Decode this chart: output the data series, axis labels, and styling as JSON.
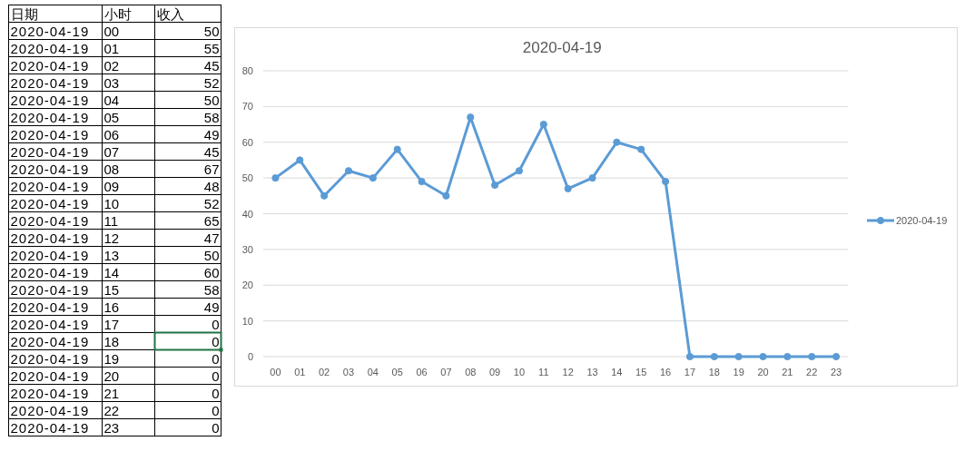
{
  "chart_data": {
    "type": "line",
    "title": "2020-04-19",
    "categories": [
      "00",
      "01",
      "02",
      "03",
      "04",
      "05",
      "06",
      "07",
      "08",
      "09",
      "10",
      "11",
      "12",
      "13",
      "14",
      "15",
      "16",
      "17",
      "18",
      "19",
      "20",
      "21",
      "22",
      "23"
    ],
    "series": [
      {
        "name": "2020-04-19",
        "color": "#5b9bd5",
        "values": [
          50,
          55,
          45,
          52,
          50,
          58,
          49,
          45,
          67,
          48,
          52,
          65,
          47,
          50,
          60,
          58,
          49,
          0,
          0,
          0,
          0,
          0,
          0,
          0
        ]
      }
    ],
    "ylim": [
      0,
      80
    ],
    "yticks": [
      0,
      10,
      20,
      30,
      40,
      50,
      60,
      70,
      80
    ],
    "grid": "y",
    "legend": "right",
    "marker": "circle",
    "line_style": "solid",
    "annotations": [
      "日期",
      "小时",
      "收入",
      "2020-04-19",
      "00",
      "50",
      "2020-04-19",
      "01",
      "55",
      "2020-04-19",
      "02",
      "45",
      "2020-04-19",
      "03",
      "52",
      "2020-04-19",
      "04",
      "50",
      "2020-04-19",
      "05",
      "58",
      "2020-04-19",
      "06",
      "49",
      "2020-04-19",
      "07",
      "45",
      "2020-04-19",
      "08",
      "67",
      "2020-04-19",
      "09",
      "48",
      "2020-04-19",
      "10",
      "52",
      "2020-04-19",
      "11",
      "65",
      "2020-04-19",
      "12",
      "47",
      "2020-04-19",
      "13",
      "50",
      "2020-04-19",
      "14",
      "60",
      "2020-04-19",
      "15",
      "58",
      "2020-04-19",
      "16",
      "49",
      "2020-04-19",
      "17",
      "0",
      "2020-04-19",
      "18",
      "0",
      "2020-04-19",
      "19",
      "0",
      "2020-04-19",
      "20",
      "0",
      "2020-04-19",
      "21",
      "0",
      "2020-04-19",
      "22",
      "0",
      "2020-04-19",
      "23",
      "0"
    ]
  }
}
